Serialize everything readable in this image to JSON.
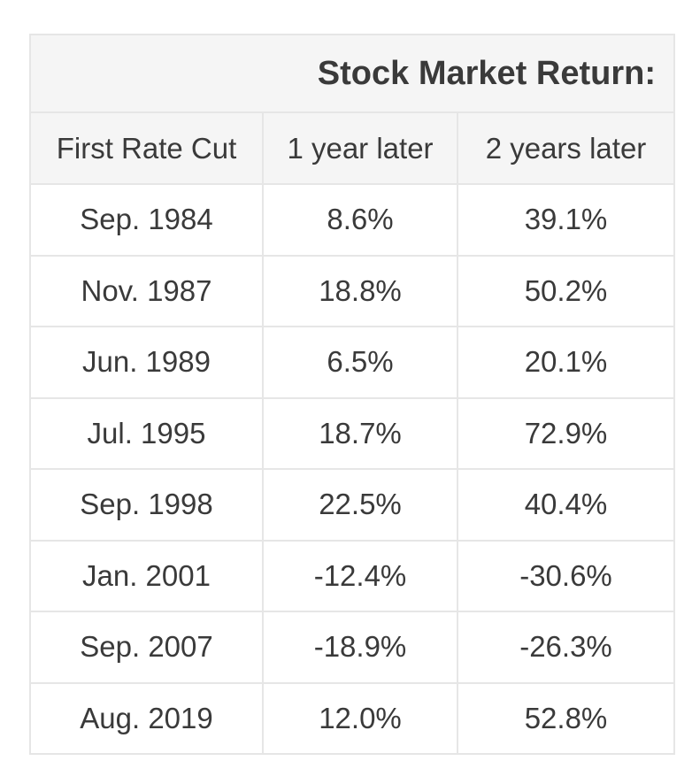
{
  "chart_data": {
    "type": "table",
    "title": "Stock Market Return:",
    "columns": [
      "First Rate Cut",
      "1 year later",
      "2 years later"
    ],
    "rows": [
      [
        "Sep. 1984",
        "8.6%",
        "39.1%"
      ],
      [
        "Nov. 1987",
        "18.8%",
        "50.2%"
      ],
      [
        "Jun. 1989",
        "6.5%",
        "20.1%"
      ],
      [
        "Jul. 1995",
        "18.7%",
        "72.9%"
      ],
      [
        "Sep. 1998",
        "22.5%",
        "40.4%"
      ],
      [
        "Jan. 2001",
        "-12.4%",
        "-30.6%"
      ],
      [
        "Sep. 2007",
        "-18.9%",
        "-26.3%"
      ],
      [
        "Aug. 2019",
        "12.0%",
        "52.8%"
      ]
    ]
  },
  "colors": {
    "header_bg": "#f5f5f5",
    "border": "#e6e6e6",
    "text": "#3a3a3a"
  }
}
